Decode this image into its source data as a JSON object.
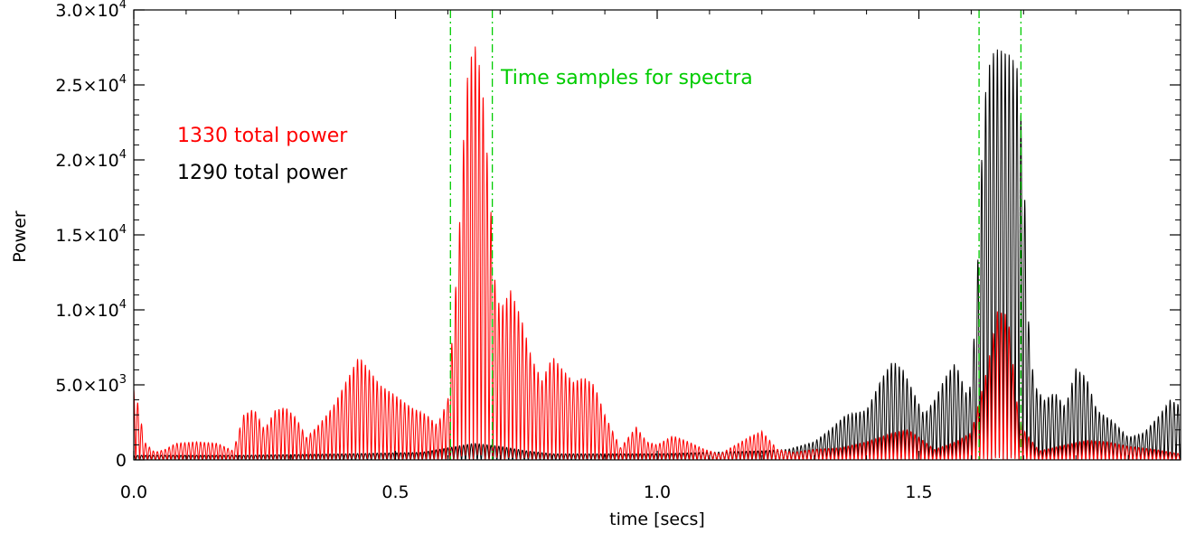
{
  "chart_data": {
    "type": "line",
    "title": "",
    "xlabel": "time [secs]",
    "ylabel": "Power",
    "xlim": [
      0.0,
      2.0
    ],
    "ylim": [
      0,
      30000
    ],
    "x_ticks": [
      0.0,
      0.5,
      1.0,
      1.5
    ],
    "x_tick_labels": [
      "0.0",
      "0.5",
      "1.0",
      "1.5"
    ],
    "y_ticks": [
      0,
      5000,
      10000,
      15000,
      20000,
      25000,
      30000
    ],
    "y_tick_labels": [
      {
        "mantissa": "0",
        "exponent": ""
      },
      {
        "mantissa": "5.0×10",
        "exponent": "3"
      },
      {
        "mantissa": "1.0×10",
        "exponent": "4"
      },
      {
        "mantissa": "1.5×10",
        "exponent": "4"
      },
      {
        "mantissa": "2.0×10",
        "exponent": "4"
      },
      {
        "mantissa": "2.5×10",
        "exponent": "4"
      },
      {
        "mantissa": "3.0×10",
        "exponent": "4"
      }
    ],
    "grid": false,
    "legend_placement": "upper-left",
    "series": [
      {
        "name": "1330 total power",
        "color": "#ff0000",
        "oscillation_period": 0.0075,
        "envelope": [
          [
            0.0,
            4700
          ],
          [
            0.01,
            3500
          ],
          [
            0.02,
            1200
          ],
          [
            0.04,
            500
          ],
          [
            0.06,
            700
          ],
          [
            0.08,
            1100
          ],
          [
            0.12,
            1200
          ],
          [
            0.16,
            1100
          ],
          [
            0.19,
            600
          ],
          [
            0.21,
            3000
          ],
          [
            0.23,
            3400
          ],
          [
            0.25,
            2000
          ],
          [
            0.27,
            3300
          ],
          [
            0.29,
            3500
          ],
          [
            0.31,
            2800
          ],
          [
            0.33,
            1500
          ],
          [
            0.35,
            2200
          ],
          [
            0.38,
            3500
          ],
          [
            0.41,
            5500
          ],
          [
            0.43,
            6900
          ],
          [
            0.45,
            6000
          ],
          [
            0.47,
            5000
          ],
          [
            0.5,
            4300
          ],
          [
            0.53,
            3500
          ],
          [
            0.56,
            3000
          ],
          [
            0.58,
            2300
          ],
          [
            0.6,
            4000
          ],
          [
            0.62,
            14000
          ],
          [
            0.635,
            25000
          ],
          [
            0.65,
            28000
          ],
          [
            0.665,
            25500
          ],
          [
            0.68,
            18000
          ],
          [
            0.69,
            12000
          ],
          [
            0.7,
            10000
          ],
          [
            0.72,
            11300
          ],
          [
            0.74,
            9500
          ],
          [
            0.76,
            6800
          ],
          [
            0.78,
            5300
          ],
          [
            0.8,
            6900
          ],
          [
            0.82,
            6000
          ],
          [
            0.84,
            5200
          ],
          [
            0.86,
            5500
          ],
          [
            0.88,
            5000
          ],
          [
            0.9,
            3000
          ],
          [
            0.93,
            800
          ],
          [
            0.96,
            2200
          ],
          [
            0.98,
            1200
          ],
          [
            1.0,
            1000
          ],
          [
            1.03,
            1600
          ],
          [
            1.06,
            1200
          ],
          [
            1.09,
            700
          ],
          [
            1.12,
            400
          ],
          [
            1.15,
            1000
          ],
          [
            1.18,
            1600
          ],
          [
            1.2,
            1900
          ],
          [
            1.23,
            700
          ],
          [
            1.26,
            500
          ],
          [
            1.3,
            700
          ],
          [
            1.35,
            800
          ],
          [
            1.4,
            1200
          ],
          [
            1.45,
            1800
          ],
          [
            1.48,
            2000
          ],
          [
            1.5,
            1500
          ],
          [
            1.53,
            700
          ],
          [
            1.57,
            1200
          ],
          [
            1.6,
            1800
          ],
          [
            1.63,
            6000
          ],
          [
            1.65,
            9900
          ],
          [
            1.67,
            9700
          ],
          [
            1.69,
            3000
          ],
          [
            1.7,
            2000
          ],
          [
            1.73,
            600
          ],
          [
            1.78,
            1000
          ],
          [
            1.82,
            1300
          ],
          [
            1.86,
            1200
          ],
          [
            1.9,
            900
          ],
          [
            1.95,
            700
          ],
          [
            2.0,
            400
          ]
        ]
      },
      {
        "name": "1290 total power",
        "color": "#000000",
        "oscillation_period": 0.0075,
        "envelope": [
          [
            0.0,
            300
          ],
          [
            0.2,
            300
          ],
          [
            0.4,
            400
          ],
          [
            0.55,
            500
          ],
          [
            0.6,
            800
          ],
          [
            0.65,
            1100
          ],
          [
            0.7,
            900
          ],
          [
            0.75,
            600
          ],
          [
            0.8,
            400
          ],
          [
            0.9,
            400
          ],
          [
            1.0,
            400
          ],
          [
            1.1,
            500
          ],
          [
            1.2,
            600
          ],
          [
            1.25,
            700
          ],
          [
            1.3,
            1200
          ],
          [
            1.33,
            2000
          ],
          [
            1.36,
            3000
          ],
          [
            1.4,
            3300
          ],
          [
            1.43,
            5500
          ],
          [
            1.45,
            6600
          ],
          [
            1.47,
            6000
          ],
          [
            1.49,
            4500
          ],
          [
            1.51,
            3000
          ],
          [
            1.53,
            4000
          ],
          [
            1.55,
            5500
          ],
          [
            1.57,
            6500
          ],
          [
            1.59,
            4500
          ],
          [
            1.6,
            5000
          ],
          [
            1.61,
            11000
          ],
          [
            1.62,
            20000
          ],
          [
            1.63,
            26000
          ],
          [
            1.645,
            27400
          ],
          [
            1.66,
            27300
          ],
          [
            1.675,
            27000
          ],
          [
            1.69,
            26000
          ],
          [
            1.7,
            20000
          ],
          [
            1.71,
            9000
          ],
          [
            1.72,
            5000
          ],
          [
            1.74,
            4000
          ],
          [
            1.76,
            4500
          ],
          [
            1.78,
            3500
          ],
          [
            1.8,
            6100
          ],
          [
            1.82,
            5500
          ],
          [
            1.84,
            3300
          ],
          [
            1.87,
            2600
          ],
          [
            1.9,
            1500
          ],
          [
            1.93,
            1800
          ],
          [
            1.96,
            3000
          ],
          [
            1.98,
            4000
          ],
          [
            2.0,
            3600
          ]
        ]
      },
      {
        "name": "Time samples for spectra",
        "color": "#00cc00",
        "style": "dash-dot",
        "vertical_lines_x": [
          0.605,
          0.685,
          1.615,
          1.695
        ]
      }
    ],
    "annotations": [
      {
        "text": "Time samples for spectra",
        "x": 0.7,
        "y": 25000,
        "color": "#00cc00"
      }
    ]
  }
}
